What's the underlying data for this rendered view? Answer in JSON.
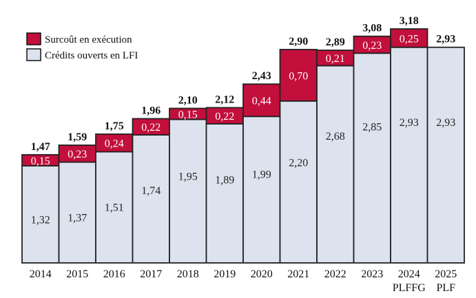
{
  "chart_data": {
    "type": "bar",
    "stacked": true,
    "title": "",
    "xlabel": "",
    "ylabel": "",
    "ylim": [
      0,
      3.18
    ],
    "grid": false,
    "legend_position": "top-left",
    "categories": [
      "2014",
      "2015",
      "2016",
      "2017",
      "2018",
      "2019",
      "2020",
      "2021",
      "2022",
      "2023",
      "2024",
      "2025"
    ],
    "category_sublabels": [
      "",
      "",
      "",
      "",
      "",
      "",
      "",
      "",
      "",
      "",
      "PLFFG",
      "PLF"
    ],
    "series": [
      {
        "name": "Crédits ouverts en LFI",
        "color": "#dde3ee",
        "values": [
          1.32,
          1.37,
          1.51,
          1.74,
          1.95,
          1.89,
          1.99,
          2.2,
          2.68,
          2.85,
          2.93,
          2.93
        ],
        "labels": [
          "1,32",
          "1,37",
          "1,51",
          "1,74",
          "1,95",
          "1,89",
          "1,99",
          "2,20",
          "2,68",
          "2,85",
          "2,93",
          "2,93"
        ]
      },
      {
        "name": "Surcoût en exécution",
        "color": "#c20f3c",
        "values": [
          0.15,
          0.23,
          0.24,
          0.22,
          0.15,
          0.22,
          0.44,
          0.7,
          0.21,
          0.23,
          0.25,
          0
        ],
        "labels": [
          "0,15",
          "0,23",
          "0,24",
          "0,22",
          "0,15",
          "0,22",
          "0,44",
          "0,70",
          "0,21",
          "0,23",
          "0,25",
          ""
        ]
      }
    ],
    "totals": [
      1.47,
      1.59,
      1.75,
      1.96,
      2.1,
      2.12,
      2.43,
      2.9,
      2.89,
      3.08,
      3.18,
      2.93
    ],
    "total_labels": [
      "1,47",
      "1,59",
      "1,75",
      "1,96",
      "2,10",
      "2,12",
      "2,43",
      "2,90",
      "2,89",
      "3,08",
      "3,18",
      "2,93"
    ]
  },
  "legend": {
    "items": [
      {
        "label": "Surcoût en exécution",
        "color": "#c20f3c"
      },
      {
        "label": "Crédits ouverts en LFI",
        "color": "#dde3ee"
      }
    ]
  }
}
